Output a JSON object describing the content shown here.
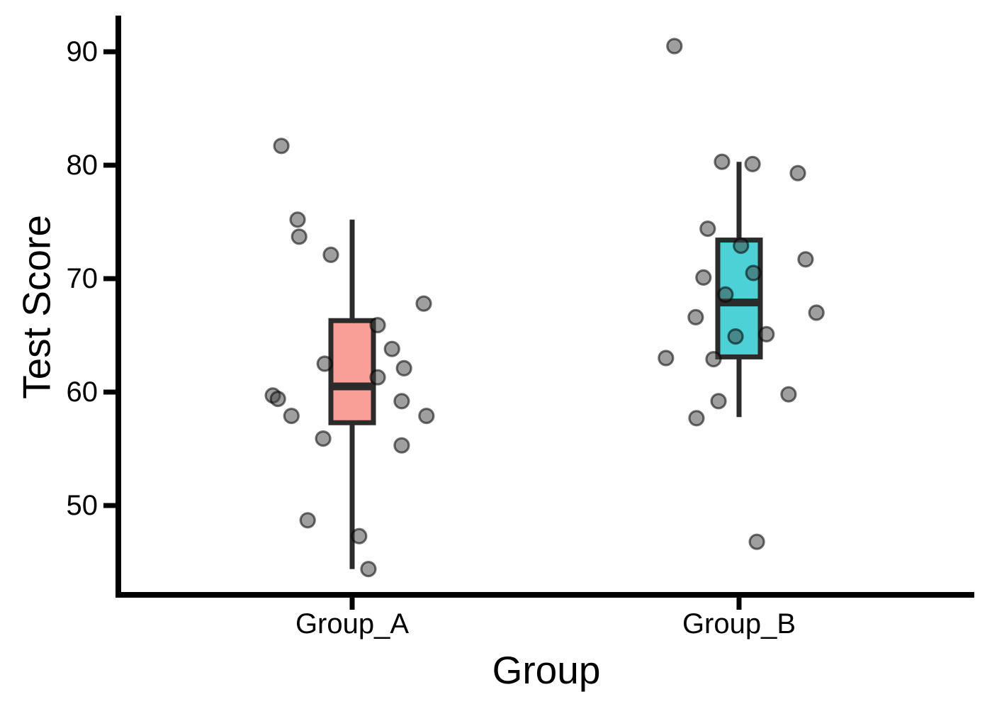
{
  "chart_data": {
    "type": "boxplot-jitter",
    "title": "",
    "xlabel": "Group",
    "ylabel": "Test Score",
    "categories": [
      "Group_A",
      "Group_B"
    ],
    "y_ticks": [
      50,
      60,
      70,
      80,
      90
    ],
    "y_tick_labels": [
      "50",
      "60",
      "70",
      "80",
      "90"
    ],
    "ylim": [
      42.1,
      93.2
    ],
    "legend": "none",
    "grid": "off",
    "colors": {
      "group_a_fill": "#FA9E98",
      "group_b_fill": "#4CD2D6",
      "box_stroke": "#2B2B2B",
      "axis_color": "#000000",
      "point_fill": "rgba(64,64,64,0.5)",
      "point_stroke": "rgba(0,0,0,0.55)"
    },
    "series": [
      {
        "name": "Group_A",
        "box": {
          "whisker_low": 44.4,
          "q1": 57.3,
          "median": 60.5,
          "q3": 66.3,
          "whisker_high": 75.2
        },
        "points": [
          {
            "value": 81.7,
            "jitter": -0.183
          },
          {
            "value": 75.2,
            "jitter": -0.141
          },
          {
            "value": 73.7,
            "jitter": -0.137
          },
          {
            "value": 72.1,
            "jitter": -0.055
          },
          {
            "value": 67.8,
            "jitter": 0.185
          },
          {
            "value": 65.9,
            "jitter": 0.066
          },
          {
            "value": 63.8,
            "jitter": 0.103
          },
          {
            "value": 62.5,
            "jitter": -0.071
          },
          {
            "value": 62.1,
            "jitter": 0.134
          },
          {
            "value": 61.3,
            "jitter": 0.066
          },
          {
            "value": 59.7,
            "jitter": -0.205
          },
          {
            "value": 59.4,
            "jitter": -0.192
          },
          {
            "value": 59.2,
            "jitter": 0.128
          },
          {
            "value": 57.9,
            "jitter": -0.157
          },
          {
            "value": 57.9,
            "jitter": 0.192
          },
          {
            "value": 55.9,
            "jitter": -0.075
          },
          {
            "value": 55.3,
            "jitter": 0.128
          },
          {
            "value": 48.7,
            "jitter": -0.115
          },
          {
            "value": 47.3,
            "jitter": 0.018
          },
          {
            "value": 44.4,
            "jitter": 0.042
          }
        ]
      },
      {
        "name": "Group_B",
        "box": {
          "whisker_low": 57.8,
          "q1": 63.1,
          "median": 67.9,
          "q3": 73.4,
          "whisker_high": 80.3
        },
        "points": [
          {
            "value": 90.5,
            "jitter": -0.167
          },
          {
            "value": 80.3,
            "jitter": -0.044
          },
          {
            "value": 80.1,
            "jitter": 0.035
          },
          {
            "value": 79.3,
            "jitter": 0.152
          },
          {
            "value": 74.4,
            "jitter": -0.081
          },
          {
            "value": 72.9,
            "jitter": 0.005
          },
          {
            "value": 71.7,
            "jitter": 0.172
          },
          {
            "value": 70.5,
            "jitter": 0.037
          },
          {
            "value": 70.1,
            "jitter": -0.092
          },
          {
            "value": 68.6,
            "jitter": -0.035
          },
          {
            "value": 67.0,
            "jitter": 0.2
          },
          {
            "value": 66.6,
            "jitter": -0.112
          },
          {
            "value": 65.1,
            "jitter": 0.071
          },
          {
            "value": 64.9,
            "jitter": -0.009
          },
          {
            "value": 63.0,
            "jitter": -0.189
          },
          {
            "value": 62.9,
            "jitter": -0.066
          },
          {
            "value": 59.8,
            "jitter": 0.128
          },
          {
            "value": 59.2,
            "jitter": -0.053
          },
          {
            "value": 57.7,
            "jitter": -0.11
          },
          {
            "value": 46.8,
            "jitter": 0.046
          }
        ]
      }
    ]
  }
}
